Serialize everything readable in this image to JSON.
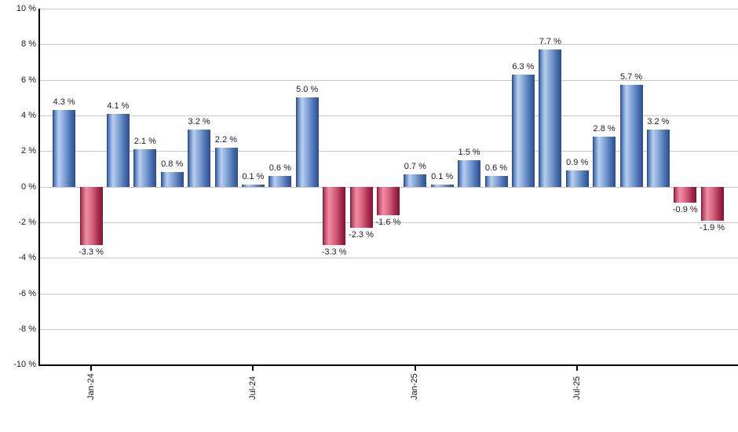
{
  "chart_data": {
    "type": "bar",
    "title": "",
    "xlabel": "",
    "ylabel": "",
    "unit": "%",
    "ylim": [
      -10,
      10
    ],
    "y_tick_step": 2,
    "grid": true,
    "legend_visible": false,
    "values": [
      4.3,
      -3.3,
      4.1,
      2.1,
      0.8,
      3.2,
      2.2,
      0.1,
      0.6,
      5.0,
      -3.3,
      -2.3,
      -1.6,
      0.7,
      0.1,
      1.5,
      0.6,
      6.3,
      7.7,
      0.9,
      2.8,
      5.7,
      3.2,
      -0.9,
      -1.9
    ],
    "bar_labels": [
      "4.3 %",
      "-3.3 %",
      "4.1 %",
      "2.1 %",
      "0.8 %",
      "3.2 %",
      "2.2 %",
      "0.1 %",
      "0.6 %",
      "5.0 %",
      "-3.3 %",
      "-2.3 %",
      "-1.6 %",
      "0.7 %",
      "0.1 %",
      "1.5 %",
      "0.6 %",
      "6.3 %",
      "7.7 %",
      "0.9 %",
      "2.8 %",
      "5.7 %",
      "3.2 %",
      "-0.9 %",
      "-1.9 %"
    ],
    "y_tick_labels": [
      "10 %",
      "8 %",
      "6 %",
      "4 %",
      "2 %",
      "0 %",
      "-2 %",
      "-4 %",
      "-6 %",
      "-8 %",
      "-10 %"
    ],
    "x_ticks": [
      {
        "bar_index": 1,
        "label": "Jan-24"
      },
      {
        "bar_index": 7,
        "label": "Jul-24"
      },
      {
        "bar_index": 13,
        "label": "Jan-25"
      },
      {
        "bar_index": 19,
        "label": "Jul-25"
      }
    ],
    "colors": {
      "positive_base": "#5c82c0",
      "negative_base": "#c04a68",
      "positive_gradient": [
        "#24437f",
        "#5c82c0",
        "#b7d0ef",
        "#9cb8e2",
        "#7397cd",
        "#4a6fae",
        "#2a4d91"
      ],
      "negative_gradient": [
        "#7c0f2e",
        "#c04a68",
        "#ee8da3",
        "#e47b93",
        "#cf5a77",
        "#a82e50",
        "#821232"
      ],
      "gridline": "#c6c6c6",
      "axis": "#000000",
      "bar_label_text": "#1c1c2e",
      "tick_label_text": "#1a1a1a"
    }
  }
}
